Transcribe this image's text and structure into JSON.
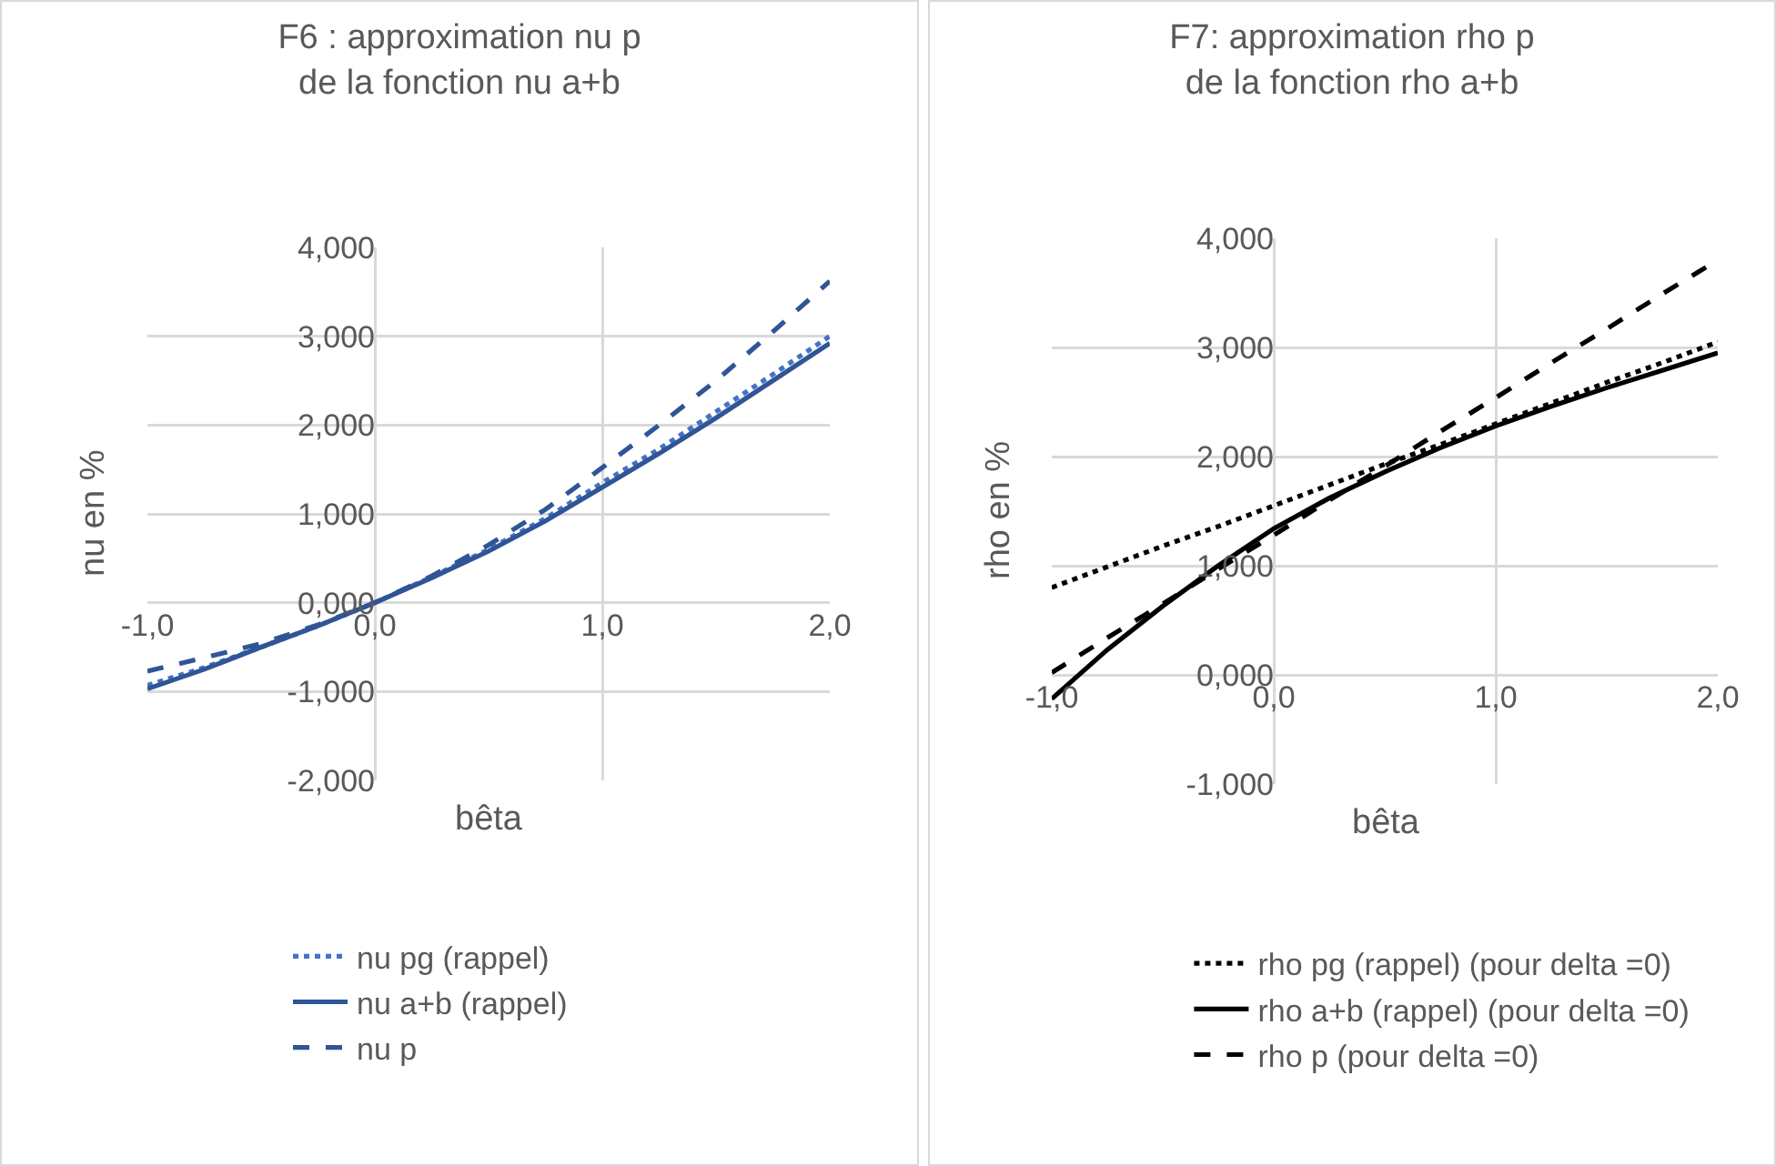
{
  "chart_data": [
    {
      "type": "line",
      "title": "F6 : approximation nu p\nde la fonction nu a+b",
      "xlabel": "bêta",
      "ylabel": "nu en %",
      "x": [
        -1,
        -0.75,
        -0.5,
        -0.25,
        0,
        0.25,
        0.5,
        0.75,
        1,
        1.25,
        1.5,
        1.75,
        2
      ],
      "series": [
        {
          "name": "nu pg (rappel)",
          "color": "#4472c4",
          "line_style": "dotted",
          "values": [
            -0.93,
            -0.73,
            -0.5,
            -0.26,
            0,
            0.29,
            0.6,
            0.95,
            1.35,
            1.73,
            2.15,
            2.57,
            3.0
          ]
        },
        {
          "name": "nu a+b (rappel)",
          "color": "#2f5597",
          "line_style": "solid",
          "values": [
            -0.97,
            -0.75,
            -0.5,
            -0.26,
            0,
            0.28,
            0.58,
            0.92,
            1.3,
            1.68,
            2.08,
            2.5,
            2.92
          ]
        },
        {
          "name": "nu p",
          "color": "#2f5597",
          "line_style": "dashed",
          "values": [
            -0.77,
            -0.62,
            -0.46,
            -0.25,
            0,
            0.3,
            0.65,
            1.05,
            1.52,
            2.0,
            2.5,
            3.05,
            3.62
          ]
        }
      ],
      "xlim": [
        -1,
        2
      ],
      "ylim": [
        -2,
        4
      ],
      "xticks": [
        {
          "value": -1,
          "label": "-1,0"
        },
        {
          "value": 0,
          "label": "0,0"
        },
        {
          "value": 1,
          "label": "1,0"
        },
        {
          "value": 2,
          "label": "2,0"
        }
      ],
      "yticks": [
        {
          "value": -2,
          "label": "-2,000"
        },
        {
          "value": -1,
          "label": "-1,000"
        },
        {
          "value": 0,
          "label": "0,000"
        },
        {
          "value": 1,
          "label": "1,000"
        },
        {
          "value": 2,
          "label": "2,000"
        },
        {
          "value": 3,
          "label": "3,000"
        },
        {
          "value": 4,
          "label": "4,000"
        }
      ],
      "grid": true,
      "legend": "bottom",
      "marker": "none"
    },
    {
      "type": "line",
      "title": "F7: approximation rho p\nde la fonction rho a+b",
      "xlabel": "bêta",
      "ylabel": "rho en %",
      "x": [
        -1,
        -0.75,
        -0.5,
        -0.25,
        0,
        0.25,
        0.5,
        0.75,
        1,
        1.25,
        1.5,
        1.75,
        2
      ],
      "series": [
        {
          "name": "rho pg (rappel) (pour delta =0)",
          "color": "#000000",
          "line_style": "dotted",
          "values": [
            0.8,
            0.99,
            1.18,
            1.36,
            1.55,
            1.74,
            1.93,
            2.11,
            2.3,
            2.49,
            2.68,
            2.86,
            3.05
          ]
        },
        {
          "name": "rho a+b (rappel) (pour delta =0)",
          "color": "#000000",
          "line_style": "solid",
          "values": [
            -0.22,
            0.23,
            0.63,
            1.0,
            1.34,
            1.62,
            1.86,
            2.08,
            2.28,
            2.46,
            2.63,
            2.79,
            2.95
          ]
        },
        {
          "name": "rho p (pour delta =0)",
          "color": "#000000",
          "line_style": "dashed",
          "values": [
            0.02,
            0.34,
            0.65,
            0.97,
            1.28,
            1.6,
            1.91,
            2.23,
            2.54,
            2.86,
            3.17,
            3.49,
            3.8
          ]
        }
      ],
      "xlim": [
        -1,
        2
      ],
      "ylim": [
        -1,
        4
      ],
      "xticks": [
        {
          "value": -1,
          "label": "-1,0"
        },
        {
          "value": 0,
          "label": "0,0"
        },
        {
          "value": 1,
          "label": "1,0"
        },
        {
          "value": 2,
          "label": "2,0"
        }
      ],
      "yticks": [
        {
          "value": -1,
          "label": "-1,000"
        },
        {
          "value": 0,
          "label": "0,000"
        },
        {
          "value": 1,
          "label": "1,000"
        },
        {
          "value": 2,
          "label": "2,000"
        },
        {
          "value": 3,
          "label": "3,000"
        },
        {
          "value": 4,
          "label": "4,000"
        }
      ],
      "grid": true,
      "legend": "bottom",
      "marker": "none"
    }
  ]
}
